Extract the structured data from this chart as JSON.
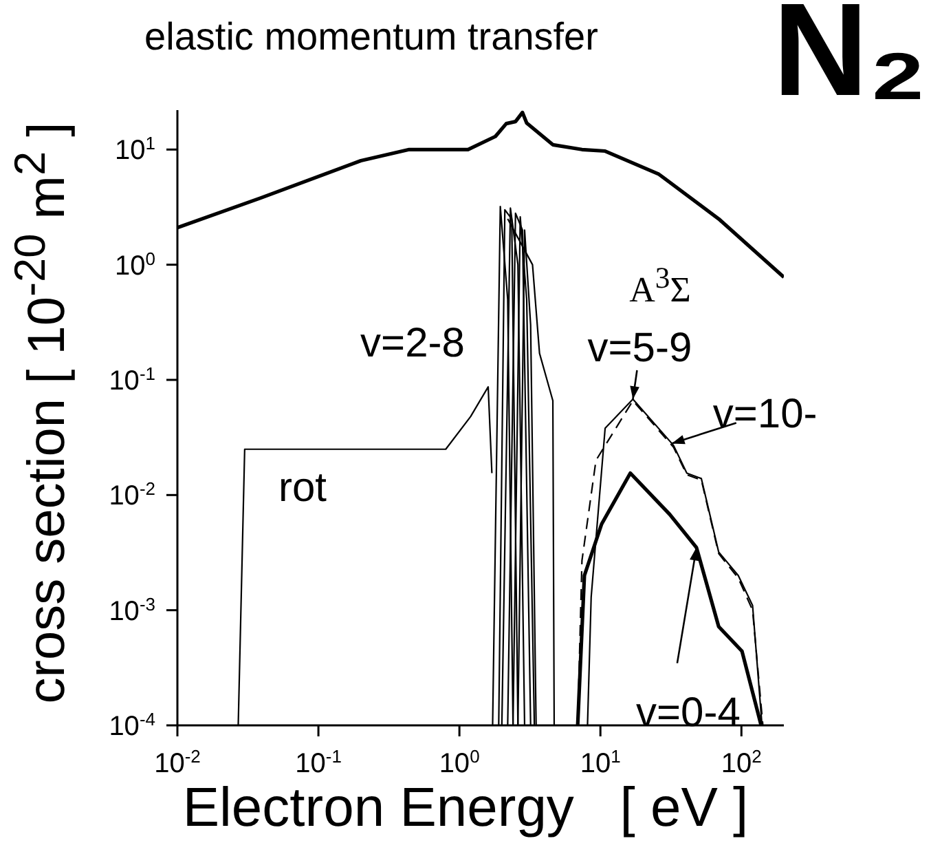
{
  "chart_data": {
    "type": "line",
    "title": "N₂",
    "xlabel": "Electron Energy   [ eV ]",
    "ylabel": "cross section [ 10$^{-20}$ m$^{2}$ ]",
    "log": "xy",
    "marker": "none",
    "xlim": [
      0.01,
      200
    ],
    "ylim": [
      0.0001,
      22
    ],
    "xticks": [
      {
        "value": 0.01,
        "label": "10$^{-2}$"
      },
      {
        "value": 0.1,
        "label": "10$^{-1}$"
      },
      {
        "value": 1,
        "label": "10$^{0}$"
      },
      {
        "value": 10,
        "label": "10$^{1}$"
      },
      {
        "value": 100,
        "label": "10$^{2}$"
      }
    ],
    "yticks": [
      {
        "value": 0.0001,
        "label": "10$^{-4}$"
      },
      {
        "value": 0.001,
        "label": "10$^{-3}$"
      },
      {
        "value": 0.01,
        "label": "10$^{-2}$"
      },
      {
        "value": 0.1,
        "label": "10$^{-1}$"
      },
      {
        "value": 1,
        "label": "10$^{0}$"
      },
      {
        "value": 10,
        "label": "10$^{1}$"
      }
    ],
    "series": [
      {
        "color": "#000000",
        "x": [
          0.01,
          0.039,
          0.2,
          0.44,
          1.15,
          1.8,
          2.15,
          2.5,
          2.8,
          3.0,
          4.6,
          7.4,
          10.8,
          26,
          69,
          200
        ],
        "values": [
          2.1,
          3.8,
          8.0,
          10,
          10,
          13,
          16.8,
          17.5,
          21,
          17,
          11,
          10,
          9.7,
          6.1,
          2.5,
          0.78
        ]
      },
      {
        "color": "#000000",
        "x": [
          0.027,
          0.03,
          0.8,
          1.2,
          1.6,
          1.7
        ],
        "values": [
          0.0001,
          0.025,
          0.025,
          0.048,
          0.087,
          0.0155
        ]
      },
      {
        "color": "#000000",
        "x": [
          1.72,
          1.95,
          2.2,
          2.4
        ],
        "values": [
          0.0001,
          3.2,
          0.5,
          0.0001
        ]
      },
      {
        "color": "#000000",
        "x": [
          1.9,
          2.1,
          2.35,
          2.6
        ],
        "values": [
          0.0001,
          3.0,
          2.5,
          0.0001
        ]
      },
      {
        "color": "#000000",
        "x": [
          2.0,
          2.3,
          2.6,
          2.9
        ],
        "values": [
          0.0001,
          3.1,
          1.0,
          0.0001
        ]
      },
      {
        "color": "#000000",
        "x": [
          2.2,
          2.5,
          2.8,
          3.2
        ],
        "values": [
          0.0001,
          2.8,
          2.0,
          0.0001
        ]
      },
      {
        "color": "#000000",
        "x": [
          2.4,
          2.7,
          3.0,
          3.4
        ],
        "values": [
          0.0001,
          2.6,
          0.5,
          0.0001
        ]
      },
      {
        "color": "#000000",
        "x": [
          2.6,
          2.9,
          3.2,
          3.5
        ],
        "values": [
          0.0001,
          2.0,
          0.3,
          0.0001
        ]
      },
      {
        "color": "#000000",
        "x": [
          2.2,
          3.3,
          3.7,
          4.6,
          4.7
        ],
        "values": [
          2.5,
          1.0,
          0.17,
          0.066,
          0.0001
        ]
      },
      {
        "color": "#000000",
        "x": [
          8.1,
          8.6,
          10.8,
          17,
          33,
          41,
          52,
          69,
          95,
          120,
          140
        ],
        "values": [
          0.0001,
          0.0013,
          0.038,
          0.068,
          0.027,
          0.0155,
          0.0139,
          0.0032,
          0.002,
          0.0011,
          0.0001
        ]
      },
      {
        "color": "#000000",
        "line_style": "dashed",
        "x": [
          6.9,
          7.4,
          9.3,
          17,
          33,
          41,
          52,
          69,
          95,
          120,
          142
        ],
        "values": [
          0.0001,
          0.0027,
          0.02,
          0.066,
          0.026,
          0.015,
          0.0135,
          0.0031,
          0.0019,
          0.001,
          0.0001
        ]
      },
      {
        "color": "#000000",
        "x": [
          6.9,
          7.7,
          10.2,
          16.3,
          31,
          48,
          69,
          101,
          138
        ],
        "values": [
          0.0001,
          0.002,
          0.0056,
          0.0155,
          0.0068,
          0.0035,
          0.00072,
          0.00044,
          0.0001
        ]
      }
    ],
    "annotations": [
      "elastic momentum transfer",
      "rot",
      "v=2-8",
      "A$^{3}$Σ",
      {
        "text": "v=5-9",
        "x": 17,
        "y": 0.068
      },
      {
        "text": "v=10-",
        "x": 32,
        "y": 0.028
      },
      {
        "text": "v=0-4",
        "x": 48,
        "y": 0.0035
      }
    ]
  }
}
